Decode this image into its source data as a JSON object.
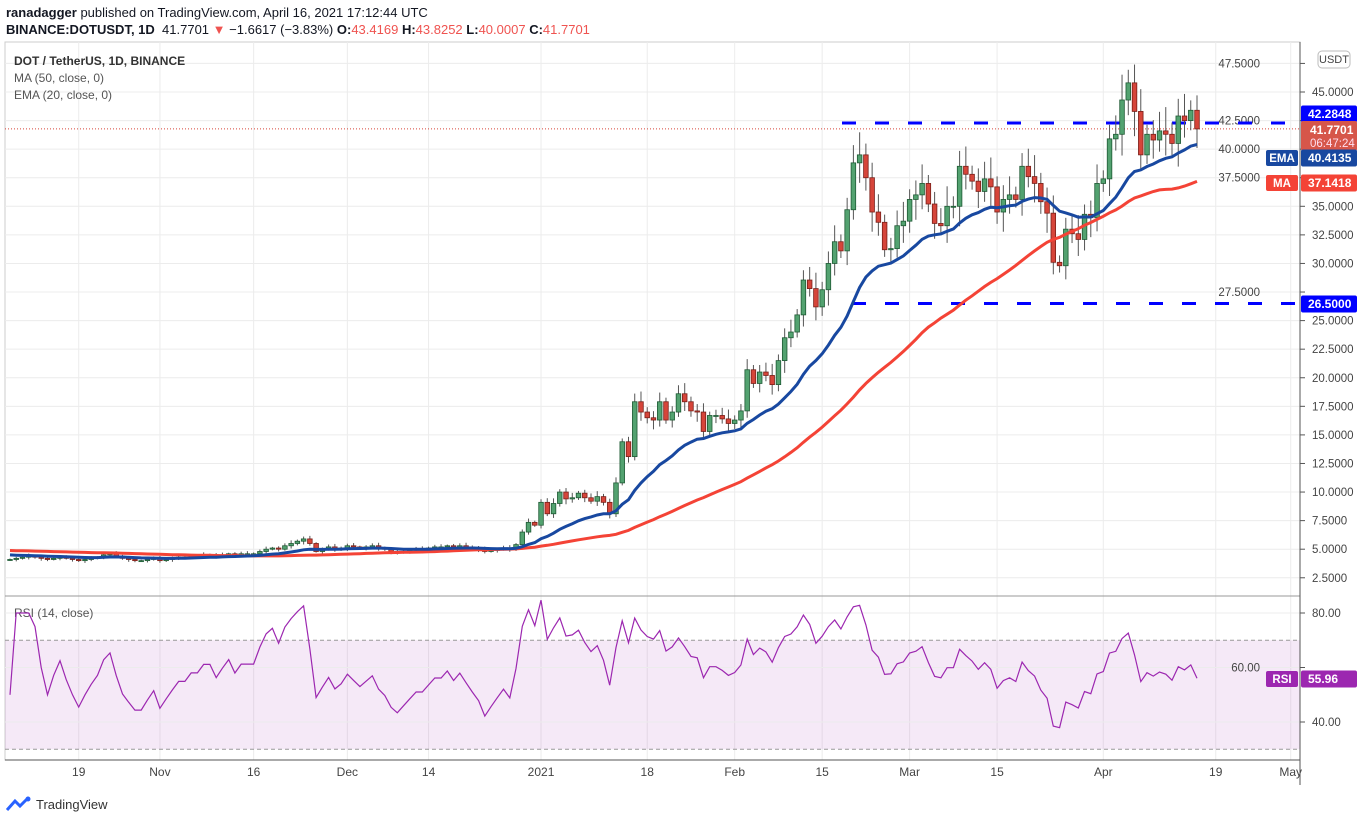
{
  "header": {
    "publisher": "ranadagger",
    "published_text": "published on TradingView.com, April 16, 2021 17:12:44 UTC",
    "symbol": "BINANCE:DOTUSDT, 1D",
    "last": "41.7701",
    "change": "−1.6617 (−3.83%)",
    "o_label": "O:",
    "o": "43.4169",
    "h_label": "H:",
    "h": "43.8252",
    "l_label": "L:",
    "l": "40.0007",
    "c_label": "C:",
    "c": "41.7701"
  },
  "legend": {
    "title": "DOT / TetherUS, 1D, BINANCE",
    "ma": "MA (50, close, 0)",
    "ema": "EMA (20, close, 0)",
    "rsi": "RSI (14, close)"
  },
  "colors": {
    "up": "#53a270",
    "down": "#d6453a",
    "ema": "#1848a0",
    "ma": "#f44336",
    "rsi": "#9c27b0",
    "level": "#0000ff"
  },
  "logo": "TradingView",
  "chart_data": {
    "type": "candlestick",
    "currency": "USDT",
    "ylim": [
      0,
      47.5
    ],
    "y_ticks": [
      "2.5000",
      "5.0000",
      "7.5000",
      "10.0000",
      "12.5000",
      "15.0000",
      "17.5000",
      "20.0000",
      "22.5000",
      "25.0000",
      "27.5000",
      "30.0000",
      "32.5000",
      "35.0000",
      "37.5000",
      "40.0000",
      "42.5000",
      "45.0000",
      "47.5000"
    ],
    "x_ticks": [
      {
        "label": "19",
        "date": "2020-10-19"
      },
      {
        "label": "Nov",
        "date": "2020-11-01"
      },
      {
        "label": "16",
        "date": "2020-11-16"
      },
      {
        "label": "Dec",
        "date": "2020-12-01"
      },
      {
        "label": "14",
        "date": "2020-12-14"
      },
      {
        "label": "2021",
        "date": "2021-01-01"
      },
      {
        "label": "18",
        "date": "2021-01-18"
      },
      {
        "label": "Feb",
        "date": "2021-02-01"
      },
      {
        "label": "15",
        "date": "2021-02-15"
      },
      {
        "label": "Mar",
        "date": "2021-03-01"
      },
      {
        "label": "15",
        "date": "2021-03-15"
      },
      {
        "label": "Apr",
        "date": "2021-04-01"
      },
      {
        "label": "19",
        "date": "2021-04-19"
      },
      {
        "label": "May",
        "date": "2021-05-01"
      }
    ],
    "first_date": "2020-10-08",
    "last_date": "2021-04-16",
    "closes": [
      4.1,
      4.2,
      4.3,
      4.4,
      4.3,
      4.2,
      4.1,
      4.2,
      4.3,
      4.2,
      4.1,
      4.0,
      4.1,
      4.2,
      4.3,
      4.5,
      4.6,
      4.4,
      4.2,
      4.1,
      4.0,
      4.0,
      4.1,
      4.2,
      4.0,
      4.1,
      4.2,
      4.3,
      4.3,
      4.4,
      4.4,
      4.5,
      4.5,
      4.4,
      4.5,
      4.6,
      4.5,
      4.6,
      4.6,
      4.6,
      4.8,
      5.0,
      5.1,
      5.0,
      5.3,
      5.5,
      5.7,
      5.9,
      5.5,
      4.8,
      5.0,
      5.2,
      5.0,
      5.1,
      5.3,
      5.2,
      5.1,
      5.2,
      5.3,
      5.1,
      5.0,
      4.8,
      4.7,
      4.8,
      4.9,
      5.0,
      5.0,
      5.1,
      5.2,
      5.2,
      5.3,
      5.2,
      5.3,
      5.2,
      5.1,
      5.0,
      4.8,
      4.9,
      5.0,
      5.1,
      5.0,
      5.4,
      6.5,
      7.35,
      7.1,
      9.1,
      8.1,
      9.0,
      10.0,
      9.4,
      9.5,
      9.9,
      9.5,
      9.2,
      9.6,
      9.1,
      8.1,
      10.8,
      14.4,
      13.1,
      17.9,
      17.0,
      16.5,
      16.3,
      17.9,
      16.3,
      17.0,
      18.6,
      17.9,
      17.1,
      17.0,
      15.3,
      16.7,
      16.7,
      16.4,
      16.0,
      16.3,
      17.1,
      20.7,
      19.5,
      20.5,
      20.2,
      19.4,
      21.5,
      23.5,
      24.0,
      25.5,
      28.55,
      27.8,
      26.2,
      27.7,
      30.0,
      31.9,
      31.1,
      34.7,
      38.8,
      39.5,
      37.5,
      34.5,
      33.6,
      31.2,
      31.3,
      33.3,
      33.7,
      35.6,
      36.0,
      37.0,
      35.2,
      33.5,
      33.3,
      35.0,
      35.0,
      38.5,
      37.8,
      37.2,
      36.3,
      37.4,
      36.7,
      34.5,
      35.6,
      36.0,
      35.6,
      38.5,
      37.6,
      37.0,
      35.4,
      34.4,
      30.1,
      29.8,
      33.0,
      32.6,
      32.1,
      34.3,
      34.0,
      37.0,
      37.4,
      40.9,
      41.3,
      44.3,
      45.8,
      43.3,
      39.5,
      41.3,
      40.8,
      41.6,
      41.3,
      40.5,
      42.9,
      42.5,
      43.4,
      41.7701
    ],
    "levels": [
      {
        "label": "42.2848",
        "value": 42.2848
      },
      {
        "label": "26.5000",
        "value": 26.5
      }
    ],
    "price_tag": {
      "value": "41.7701",
      "countdown": "06:47:24"
    },
    "ema_tag": {
      "name": "EMA",
      "value": "40.4135"
    },
    "ma_tag": {
      "name": "MA",
      "value": "37.1418"
    },
    "rsi": {
      "ticks": [
        "80.00",
        "60.00",
        "40.00"
      ],
      "band": [
        30,
        70
      ],
      "tag_name": "RSI",
      "value": "55.96"
    }
  }
}
